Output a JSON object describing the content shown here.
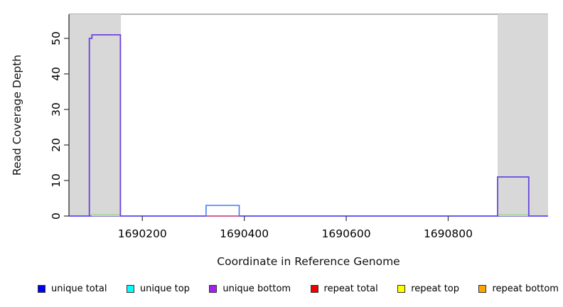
{
  "chart_data": {
    "type": "line",
    "title": "",
    "xlabel": "Coordinate in Reference Genome",
    "ylabel": "Read Coverage Depth",
    "xlim": [
      1690056,
      1690996
    ],
    "ylim": [
      0,
      56.8
    ],
    "xticks": [
      1690200,
      1690400,
      1690600,
      1690800
    ],
    "yticks": [
      0,
      10,
      20,
      30,
      40,
      50
    ],
    "grid": false,
    "legend_position": "bottom",
    "background": "#ffffff",
    "shaded_regions": [
      {
        "name": "masked-region-left",
        "x0": 1690056,
        "x1": 1690158,
        "color": "#d8d8d8"
      },
      {
        "name": "masked-region-right",
        "x0": 1690897,
        "x1": 1690996,
        "color": "#d8d8d8"
      }
    ],
    "series": [
      {
        "name": "unique total",
        "color": "#0000ee",
        "points": [
          [
            1690056,
            0
          ],
          [
            1690325,
            0
          ],
          [
            1690325,
            3
          ],
          [
            1690390,
            3
          ],
          [
            1690390,
            0
          ],
          [
            1690996,
            0
          ]
        ]
      },
      {
        "name": "unique top",
        "color": "#00ffff",
        "points": [
          [
            1690056,
            0
          ],
          [
            1690996,
            0
          ]
        ]
      },
      {
        "name": "unique bottom",
        "color": "#a020f0",
        "points": [
          [
            1690056,
            0
          ],
          [
            1690096,
            0
          ],
          [
            1690096,
            50
          ],
          [
            1690101,
            50
          ],
          [
            1690101,
            51
          ],
          [
            1690157,
            51
          ],
          [
            1690157,
            0
          ],
          [
            1690897,
            0
          ],
          [
            1690897,
            11
          ],
          [
            1690958,
            11
          ],
          [
            1690958,
            0
          ],
          [
            1690996,
            0
          ]
        ]
      },
      {
        "name": "repeat total",
        "color": "#ee0000",
        "points": [
          [
            1690056,
            0
          ],
          [
            1690996,
            0
          ]
        ]
      },
      {
        "name": "repeat top",
        "color": "#ffff00",
        "points": [
          [
            1690056,
            0
          ],
          [
            1690996,
            0
          ]
        ]
      },
      {
        "name": "repeat bottom",
        "color": "#ffa500",
        "points": [
          [
            1690056,
            0
          ],
          [
            1690996,
            0
          ]
        ]
      }
    ],
    "rendered_strokes": [
      {
        "name": "zero-baseline",
        "color": "#6a5af2",
        "width": 2.0,
        "points": [
          [
            1690056,
            0
          ],
          [
            1690996,
            0
          ]
        ]
      },
      {
        "name": "repeat-top-under-left-peak",
        "color": "#ddd98a",
        "width": 1.5,
        "points": [
          [
            1690100,
            0.1
          ],
          [
            1690156,
            0.1
          ]
        ]
      },
      {
        "name": "green-under-left-peak",
        "color": "#a4d9a0",
        "width": 1.4,
        "points": [
          [
            1690100,
            0.45
          ],
          [
            1690156,
            0.45
          ]
        ]
      },
      {
        "name": "repeat-top-under-right-bump",
        "color": "#ddd98a",
        "width": 1.5,
        "points": [
          [
            1690899,
            0.1
          ],
          [
            1690957,
            0.1
          ]
        ]
      },
      {
        "name": "green-under-right-bump",
        "color": "#a4d9a0",
        "width": 1.4,
        "points": [
          [
            1690899,
            0.45
          ],
          [
            1690957,
            0.45
          ]
        ]
      },
      {
        "name": "repeat-total-under-middle-bump",
        "color": "#f2646e",
        "width": 1.6,
        "points": [
          [
            1690325,
            0
          ],
          [
            1690390,
            0
          ]
        ]
      },
      {
        "name": "unique-total-middle-bump",
        "color": "#3f7df8",
        "width": 1.6,
        "points": [
          [
            1690325,
            0
          ],
          [
            1690325,
            3
          ],
          [
            1690390,
            3
          ],
          [
            1690390,
            0
          ]
        ]
      },
      {
        "name": "unique-bottom-left-peak",
        "color": "#6e42db",
        "width": 1.8,
        "points": [
          [
            1690096,
            0
          ],
          [
            1690096,
            50
          ],
          [
            1690101,
            50
          ],
          [
            1690101,
            51
          ],
          [
            1690157,
            51
          ],
          [
            1690157,
            0
          ]
        ]
      },
      {
        "name": "unique-bottom-right-bump",
        "color": "#6748dd",
        "width": 1.8,
        "points": [
          [
            1690897,
            0
          ],
          [
            1690897,
            11
          ],
          [
            1690958,
            11
          ],
          [
            1690958,
            0
          ]
        ]
      }
    ]
  },
  "axes_style": {
    "axis_color": "#222222",
    "tick_color": "#333333",
    "top_border_color": "#888888",
    "tick_label_color": "#000000"
  },
  "legend": {
    "items": [
      {
        "label": "unique total",
        "color": "#0000ee"
      },
      {
        "label": "unique top",
        "color": "#00ffff"
      },
      {
        "label": "unique bottom",
        "color": "#a020f0"
      },
      {
        "label": "repeat total",
        "color": "#ee0000"
      },
      {
        "label": "repeat top",
        "color": "#ffff00"
      },
      {
        "label": "repeat bottom",
        "color": "#ffa500"
      }
    ]
  }
}
